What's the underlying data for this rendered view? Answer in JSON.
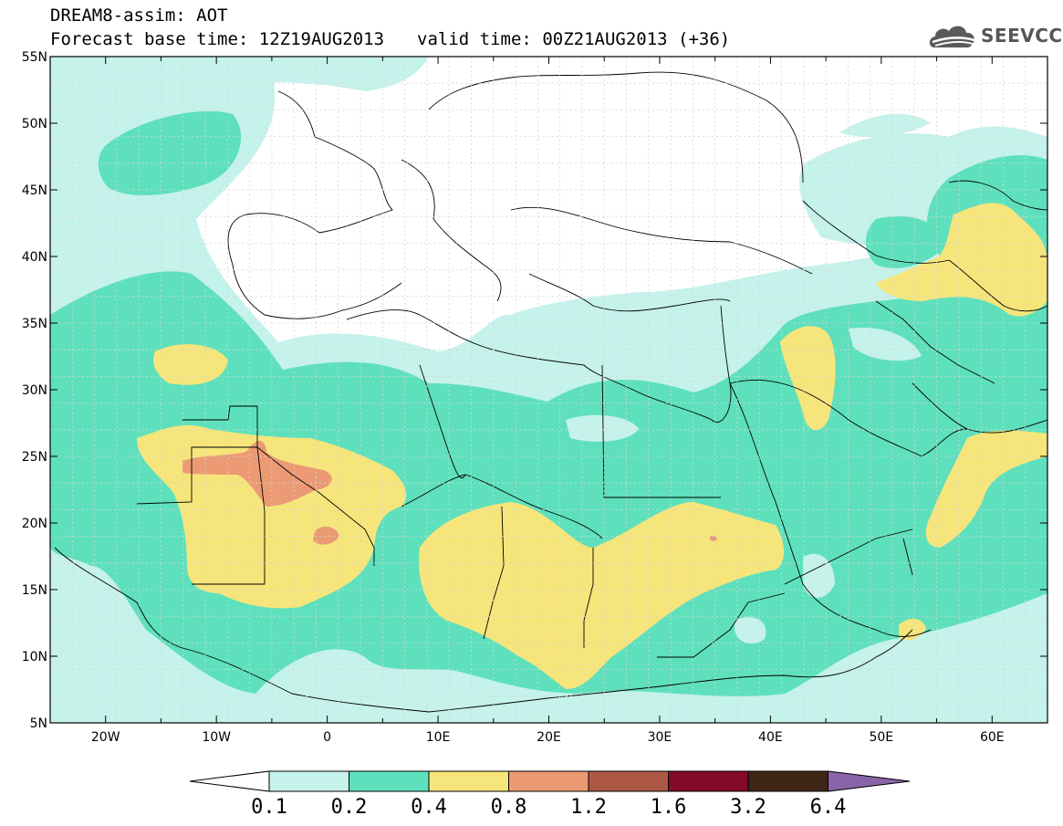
{
  "header": {
    "model_line": "DREAM8-assim: AOT",
    "base_time": "Forecast base time: 12Z19AUG2013",
    "valid_time": "valid time: 00Z21AUG2013 (+36)"
  },
  "logo": {
    "text": "SEEVCCC",
    "icon": "cloud-icon"
  },
  "map": {
    "lon_range": [
      -25,
      65
    ],
    "lat_range": [
      5,
      55
    ],
    "lon_ticks": [
      "20W",
      "10W",
      "0",
      "10E",
      "20E",
      "30E",
      "40E",
      "50E",
      "60E"
    ],
    "lat_ticks": [
      "5N",
      "10N",
      "15N",
      "20N",
      "25N",
      "30N",
      "35N",
      "40N",
      "45N",
      "50N",
      "55N"
    ]
  },
  "legend": {
    "labels": [
      "0.1",
      "0.2",
      "0.4",
      "0.8",
      "1.2",
      "1.6",
      "3.2",
      "6.4"
    ],
    "colors": [
      "#ffffff",
      "#c5f2eb",
      "#5ee0bd",
      "#f6e57a",
      "#eb9a74",
      "#ad5847",
      "#840a2a",
      "#3e2515",
      "#8a64a8"
    ]
  }
}
